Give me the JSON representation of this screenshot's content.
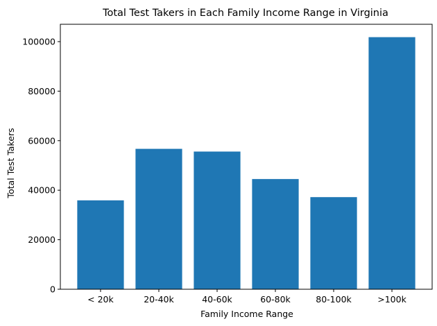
{
  "chart_data": {
    "type": "bar",
    "title": "Total Test Takers in Each Family Income Range in Virginia",
    "xlabel": "Family Income Range",
    "ylabel": "Total Test Takers",
    "categories": [
      "< 20k",
      "20-40k",
      "40-60k",
      "60-80k",
      "80-100k",
      ">100k"
    ],
    "values": [
      35900,
      56700,
      55600,
      44500,
      37200,
      101800
    ],
    "ylim": [
      0,
      107000
    ],
    "yticks": [
      0,
      20000,
      40000,
      60000,
      80000,
      100000
    ],
    "bar_color": "#1f77b4",
    "grid": false,
    "legend": "none"
  }
}
